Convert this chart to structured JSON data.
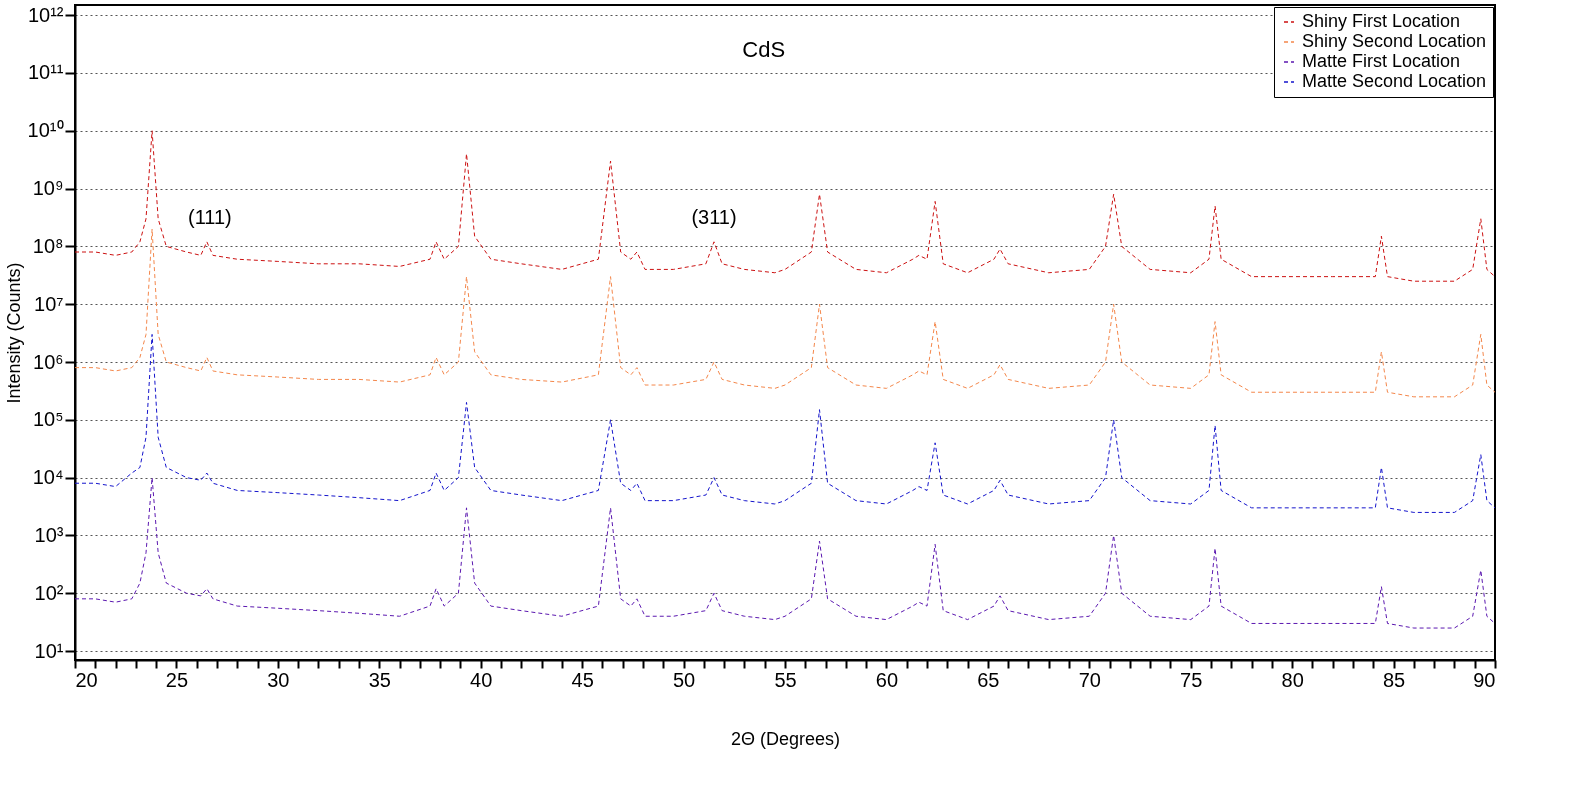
{
  "chart_data": {
    "type": "line",
    "title": "CdS",
    "xlabel": "2Θ (Degrees)",
    "ylabel": "Intensity (Counts)",
    "log": "y",
    "grid": "y",
    "legend": "top right",
    "line_style": "dashed",
    "marker": "none",
    "xlim": [
      20,
      90
    ],
    "ylim": [
      7,
      1500000000000
    ],
    "xticks": [
      20,
      {
        "value": 21,
        "label": null
      },
      {
        "value": 22,
        "label": null
      },
      {
        "value": 23,
        "label": null
      },
      {
        "value": 24,
        "label": null
      },
      25,
      {
        "value": 26,
        "label": null
      },
      {
        "value": 27,
        "label": null
      },
      {
        "value": 28,
        "label": null
      },
      {
        "value": 29,
        "label": null
      },
      30,
      {
        "value": 31,
        "label": null
      },
      {
        "value": 32,
        "label": null
      },
      {
        "value": 33,
        "label": null
      },
      {
        "value": 34,
        "label": null
      },
      35,
      {
        "value": 36,
        "label": null
      },
      {
        "value": 37,
        "label": null
      },
      {
        "value": 38,
        "label": null
      },
      {
        "value": 39,
        "label": null
      },
      40,
      {
        "value": 41,
        "label": null
      },
      {
        "value": 42,
        "label": null
      },
      {
        "value": 43,
        "label": null
      },
      {
        "value": 44,
        "label": null
      },
      45,
      {
        "value": 46,
        "label": null
      },
      {
        "value": 47,
        "label": null
      },
      {
        "value": 48,
        "label": null
      },
      {
        "value": 49,
        "label": null
      },
      50,
      {
        "value": 51,
        "label": null
      },
      {
        "value": 52,
        "label": null
      },
      {
        "value": 53,
        "label": null
      },
      {
        "value": 54,
        "label": null
      },
      55,
      {
        "value": 56,
        "label": null
      },
      {
        "value": 57,
        "label": null
      },
      {
        "value": 58,
        "label": null
      },
      {
        "value": 59,
        "label": null
      },
      60,
      {
        "value": 61,
        "label": null
      },
      {
        "value": 62,
        "label": null
      },
      {
        "value": 63,
        "label": null
      },
      {
        "value": 64,
        "label": null
      },
      65,
      {
        "value": 66,
        "label": null
      },
      {
        "value": 67,
        "label": null
      },
      {
        "value": 68,
        "label": null
      },
      {
        "value": 69,
        "label": null
      },
      70,
      {
        "value": 71,
        "label": null
      },
      {
        "value": 72,
        "label": null
      },
      {
        "value": 73,
        "label": null
      },
      {
        "value": 74,
        "label": null
      },
      75,
      {
        "value": 76,
        "label": null
      },
      {
        "value": 77,
        "label": null
      },
      {
        "value": 78,
        "label": null
      },
      {
        "value": 79,
        "label": null
      },
      80,
      {
        "value": 81,
        "label": null
      },
      {
        "value": 82,
        "label": null
      },
      {
        "value": 83,
        "label": null
      },
      {
        "value": 84,
        "label": null
      },
      85,
      {
        "value": 86,
        "label": null
      },
      {
        "value": 87,
        "label": null
      },
      {
        "value": 88,
        "label": null
      },
      {
        "value": 89,
        "label": null
      },
      90
    ],
    "yticks": [
      {
        "value": 10,
        "label": "10¹"
      },
      {
        "value": 100,
        "label": "10²"
      },
      {
        "value": 1000,
        "label": "10³"
      },
      {
        "value": 10000,
        "label": "10⁴"
      },
      {
        "value": 100000,
        "label": "10⁵"
      },
      {
        "value": 1000000,
        "label": "10⁶"
      },
      {
        "value": 10000000,
        "label": "10⁷"
      },
      {
        "value": 100000000,
        "label": "10⁸"
      },
      {
        "value": 1000000000,
        "label": "10⁹"
      },
      {
        "value": 10000000000,
        "label": "10¹⁰"
      },
      {
        "value": 100000000000,
        "label": "10¹¹"
      },
      {
        "value": 1000000000000,
        "label": "10¹²"
      }
    ],
    "annotations": [
      "(111)",
      "(311)"
    ],
    "x": [
      20,
      21,
      22,
      22.8,
      23.2,
      23.5,
      23.8,
      24.1,
      24.5,
      25.5,
      26.2,
      26.5,
      26.8,
      28,
      30,
      32,
      34,
      36,
      37.5,
      37.8,
      38.2,
      38.9,
      39.3,
      39.7,
      40.5,
      42,
      44,
      45.8,
      46.4,
      46.9,
      47.4,
      47.7,
      48.1,
      49.5,
      51.1,
      51.5,
      51.9,
      53,
      54.5,
      55,
      56.3,
      56.7,
      57.1,
      58.5,
      60,
      61.3,
      61.6,
      62,
      62.4,
      62.8,
      64,
      65.3,
      65.6,
      66,
      68,
      70,
      70.8,
      71.2,
      71.6,
      73,
      75,
      75.9,
      76.2,
      76.5,
      78,
      80,
      82,
      84.1,
      84.4,
      84.7,
      86,
      88,
      88.9,
      89.3,
      89.6,
      90
    ],
    "series": [
      {
        "name": "Shiny First Location",
        "color": "#cc1111",
        "values": [
          80000000.0,
          80000000.0,
          70000000.0,
          80000000.0,
          120000000.0,
          300000000.0,
          10000000000.0,
          300000000.0,
          100000000.0,
          80000000.0,
          70000000.0,
          120000000.0,
          70000000.0,
          60000000.0,
          55000000.0,
          50000000.0,
          50000000.0,
          45000000.0,
          60000000.0,
          120000000.0,
          60000000.0,
          100000000.0,
          4000000000.0,
          150000000.0,
          60000000.0,
          50000000.0,
          40000000.0,
          60000000.0,
          3000000000.0,
          80000000.0,
          60000000.0,
          80000000.0,
          40000000.0,
          40000000.0,
          50000000.0,
          120000000.0,
          50000000.0,
          40000000.0,
          35000000.0,
          40000000.0,
          80000000.0,
          800000000.0,
          80000000.0,
          40000000.0,
          35000000.0,
          60000000.0,
          70000000.0,
          60000000.0,
          600000000.0,
          50000000.0,
          35000000.0,
          60000000.0,
          90000000.0,
          50000000.0,
          35000000.0,
          40000000.0,
          100000000.0,
          800000000.0,
          100000000.0,
          40000000.0,
          35000000.0,
          60000000.0,
          500000000.0,
          60000000.0,
          30000000.0,
          30000000.0,
          30000000.0,
          30000000.0,
          150000000.0,
          30000000.0,
          25000000.0,
          25000000.0,
          40000000.0,
          300000000.0,
          40000000.0,
          30000000.0
        ]
      },
      {
        "name": "Shiny Second Location",
        "color": "#f4874b",
        "values": [
          800000.0,
          800000.0,
          700000.0,
          800000.0,
          1200000.0,
          3000000.0,
          200000000.0,
          3000000.0,
          1000000.0,
          800000.0,
          700000.0,
          1200000.0,
          700000.0,
          600000.0,
          550000.0,
          500000.0,
          500000.0,
          450000.0,
          600000.0,
          1200000.0,
          600000.0,
          1000000.0,
          30000000.0,
          1500000.0,
          600000.0,
          500000.0,
          450000.0,
          600000.0,
          30000000.0,
          800000.0,
          600000.0,
          800000.0,
          400000.0,
          400000.0,
          500000.0,
          1000000.0,
          500000.0,
          400000.0,
          350000.0,
          400000.0,
          800000.0,
          10000000.0,
          800000.0,
          400000.0,
          350000.0,
          600000.0,
          700000.0,
          600000.0,
          5000000.0,
          500000.0,
          350000.0,
          600000.0,
          900000.0,
          500000.0,
          350000.0,
          400000.0,
          1000000.0,
          10000000.0,
          1000000.0,
          400000.0,
          350000.0,
          600000.0,
          5000000.0,
          600000.0,
          300000.0,
          300000.0,
          300000.0,
          300000.0,
          1500000.0,
          300000.0,
          250000.0,
          250000.0,
          400000.0,
          3000000.0,
          400000.0,
          300000.0
        ]
      },
      {
        "name": "Matte First Location",
        "color": "#5b18b0",
        "values": [
          80,
          80,
          70,
          80,
          150,
          500,
          10000,
          500,
          150,
          100,
          90,
          120,
          80,
          60,
          55,
          50,
          45,
          40,
          60,
          120,
          60,
          100,
          3000,
          150,
          60,
          50,
          40,
          60,
          3000,
          80,
          60,
          80,
          40,
          40,
          50,
          100,
          50,
          40,
          35,
          40,
          80,
          800,
          80,
          40,
          35,
          60,
          70,
          60,
          700,
          50,
          35,
          60,
          90,
          50,
          35,
          40,
          100,
          1000,
          100,
          40,
          35,
          60,
          600,
          60,
          30,
          30,
          30,
          30,
          130,
          30,
          25,
          25,
          40,
          250,
          40,
          30
        ]
      },
      {
        "name": "Matte Second Location",
        "color": "#1414cc",
        "values": [
          8000,
          8000,
          7000,
          12000,
          15000,
          50000,
          3000000,
          50000,
          15000,
          10000,
          9000,
          12000,
          8000,
          6000,
          5500,
          5000,
          4500,
          4000,
          6000,
          12000,
          6000,
          10000,
          200000,
          15000,
          6000,
          5000,
          4000,
          6000,
          100000,
          8000,
          6000,
          8000,
          4000,
          4000,
          5000,
          10000,
          5000,
          4000,
          3500,
          4000,
          8000,
          150000,
          8000,
          4000,
          3500,
          6000,
          7000,
          6000,
          40000,
          5000,
          3500,
          6000,
          9000,
          5000,
          3500,
          4000,
          10000,
          100000,
          10000,
          4000,
          3500,
          6000,
          80000,
          6000,
          3000,
          3000,
          3000,
          3000,
          15000,
          3000,
          2500,
          2500,
          4000,
          25000,
          4000,
          3000
        ]
      }
    ]
  }
}
